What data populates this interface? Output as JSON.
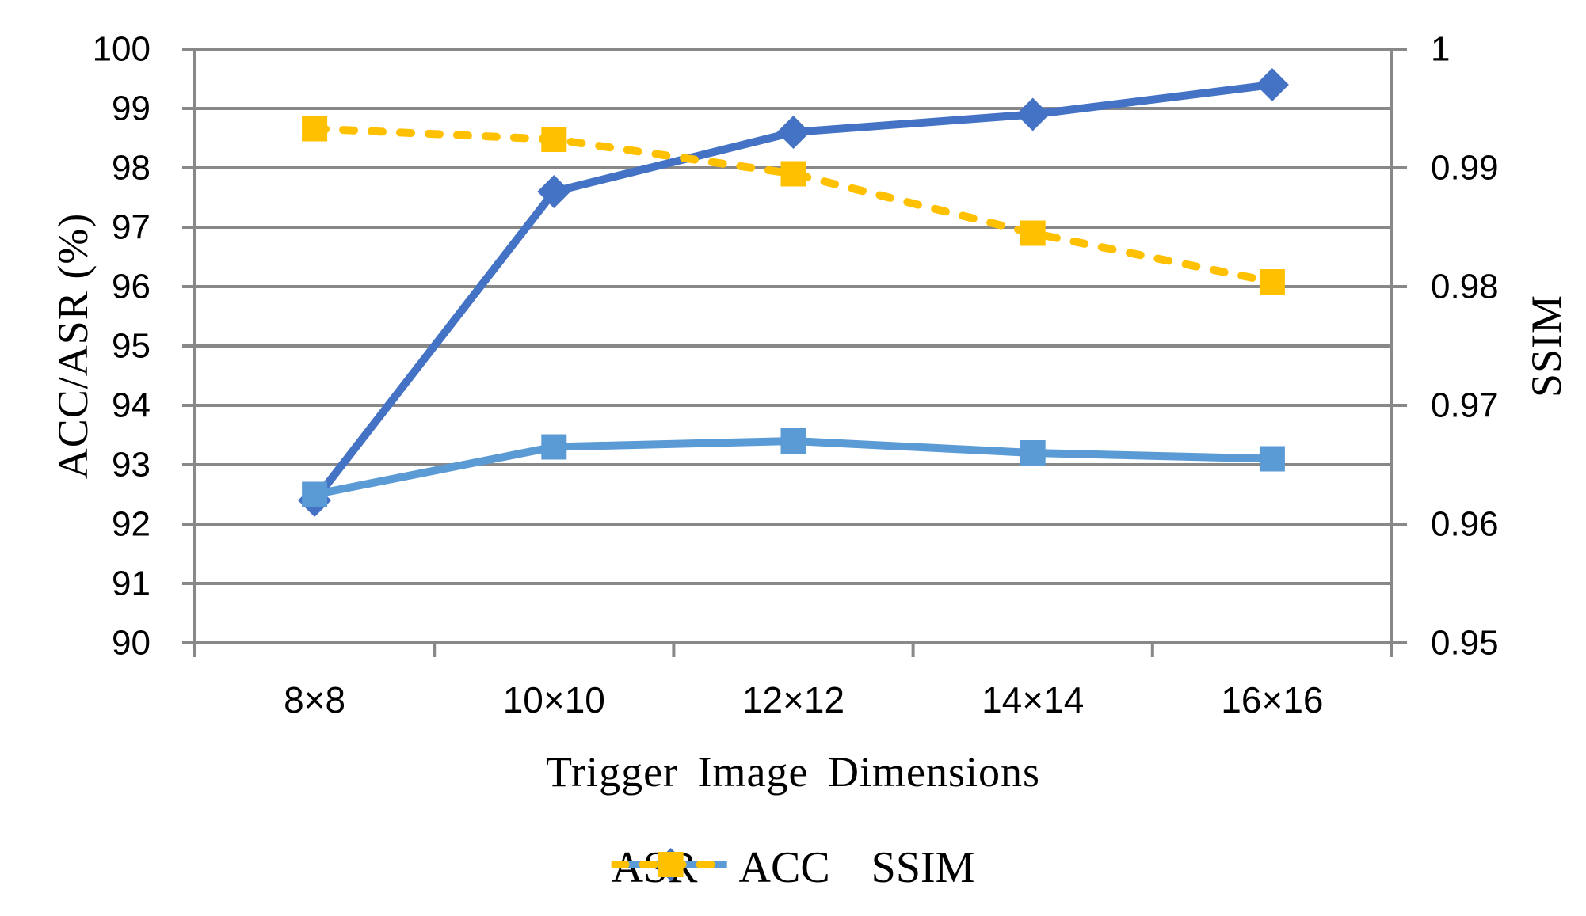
{
  "chart_data": {
    "type": "line",
    "title": "",
    "categories": [
      "8×8",
      "10×10",
      "12×12",
      "14×14",
      "16×16"
    ],
    "series": [
      {
        "name": "ASR",
        "axis": "left",
        "color": "#4472C4",
        "marker": "diamond",
        "line_style": "solid",
        "values": [
          92.4,
          97.6,
          98.6,
          98.9,
          99.4
        ]
      },
      {
        "name": "ACC",
        "axis": "left",
        "color": "#5B9BD5",
        "marker": "square",
        "line_style": "solid",
        "values": [
          92.5,
          93.3,
          93.4,
          93.2,
          93.1
        ]
      },
      {
        "name": "SSIM",
        "axis": "right",
        "color": "#FFC000",
        "marker": "square",
        "line_style": "dashed",
        "values": [
          0.9933,
          0.9924,
          0.9895,
          0.9845,
          0.9804
        ]
      }
    ],
    "x_axis": {
      "title": "Trigger Image Dimensions"
    },
    "left_axis": {
      "title": "ACC/ASR (%)",
      "min": 90,
      "max": 100,
      "tick_labels": [
        "100",
        "99",
        "98",
        "97",
        "96",
        "95",
        "94",
        "93",
        "92",
        "91",
        "90"
      ],
      "tick_values": [
        100,
        99,
        98,
        97,
        96,
        95,
        94,
        93,
        92,
        91,
        90
      ]
    },
    "right_axis": {
      "title": "SSIM",
      "min": 0.95,
      "max": 1,
      "tick_labels": [
        "1",
        "0.99",
        "0.98",
        "0.97",
        "0.96",
        "0.95"
      ],
      "tick_values": [
        1,
        0.99,
        0.98,
        0.97,
        0.96,
        0.95
      ]
    },
    "grid": true,
    "legend_position": "bottom",
    "style": {
      "grid_color": "#888888",
      "text_color": "#000000",
      "background": "#ffffff"
    }
  }
}
